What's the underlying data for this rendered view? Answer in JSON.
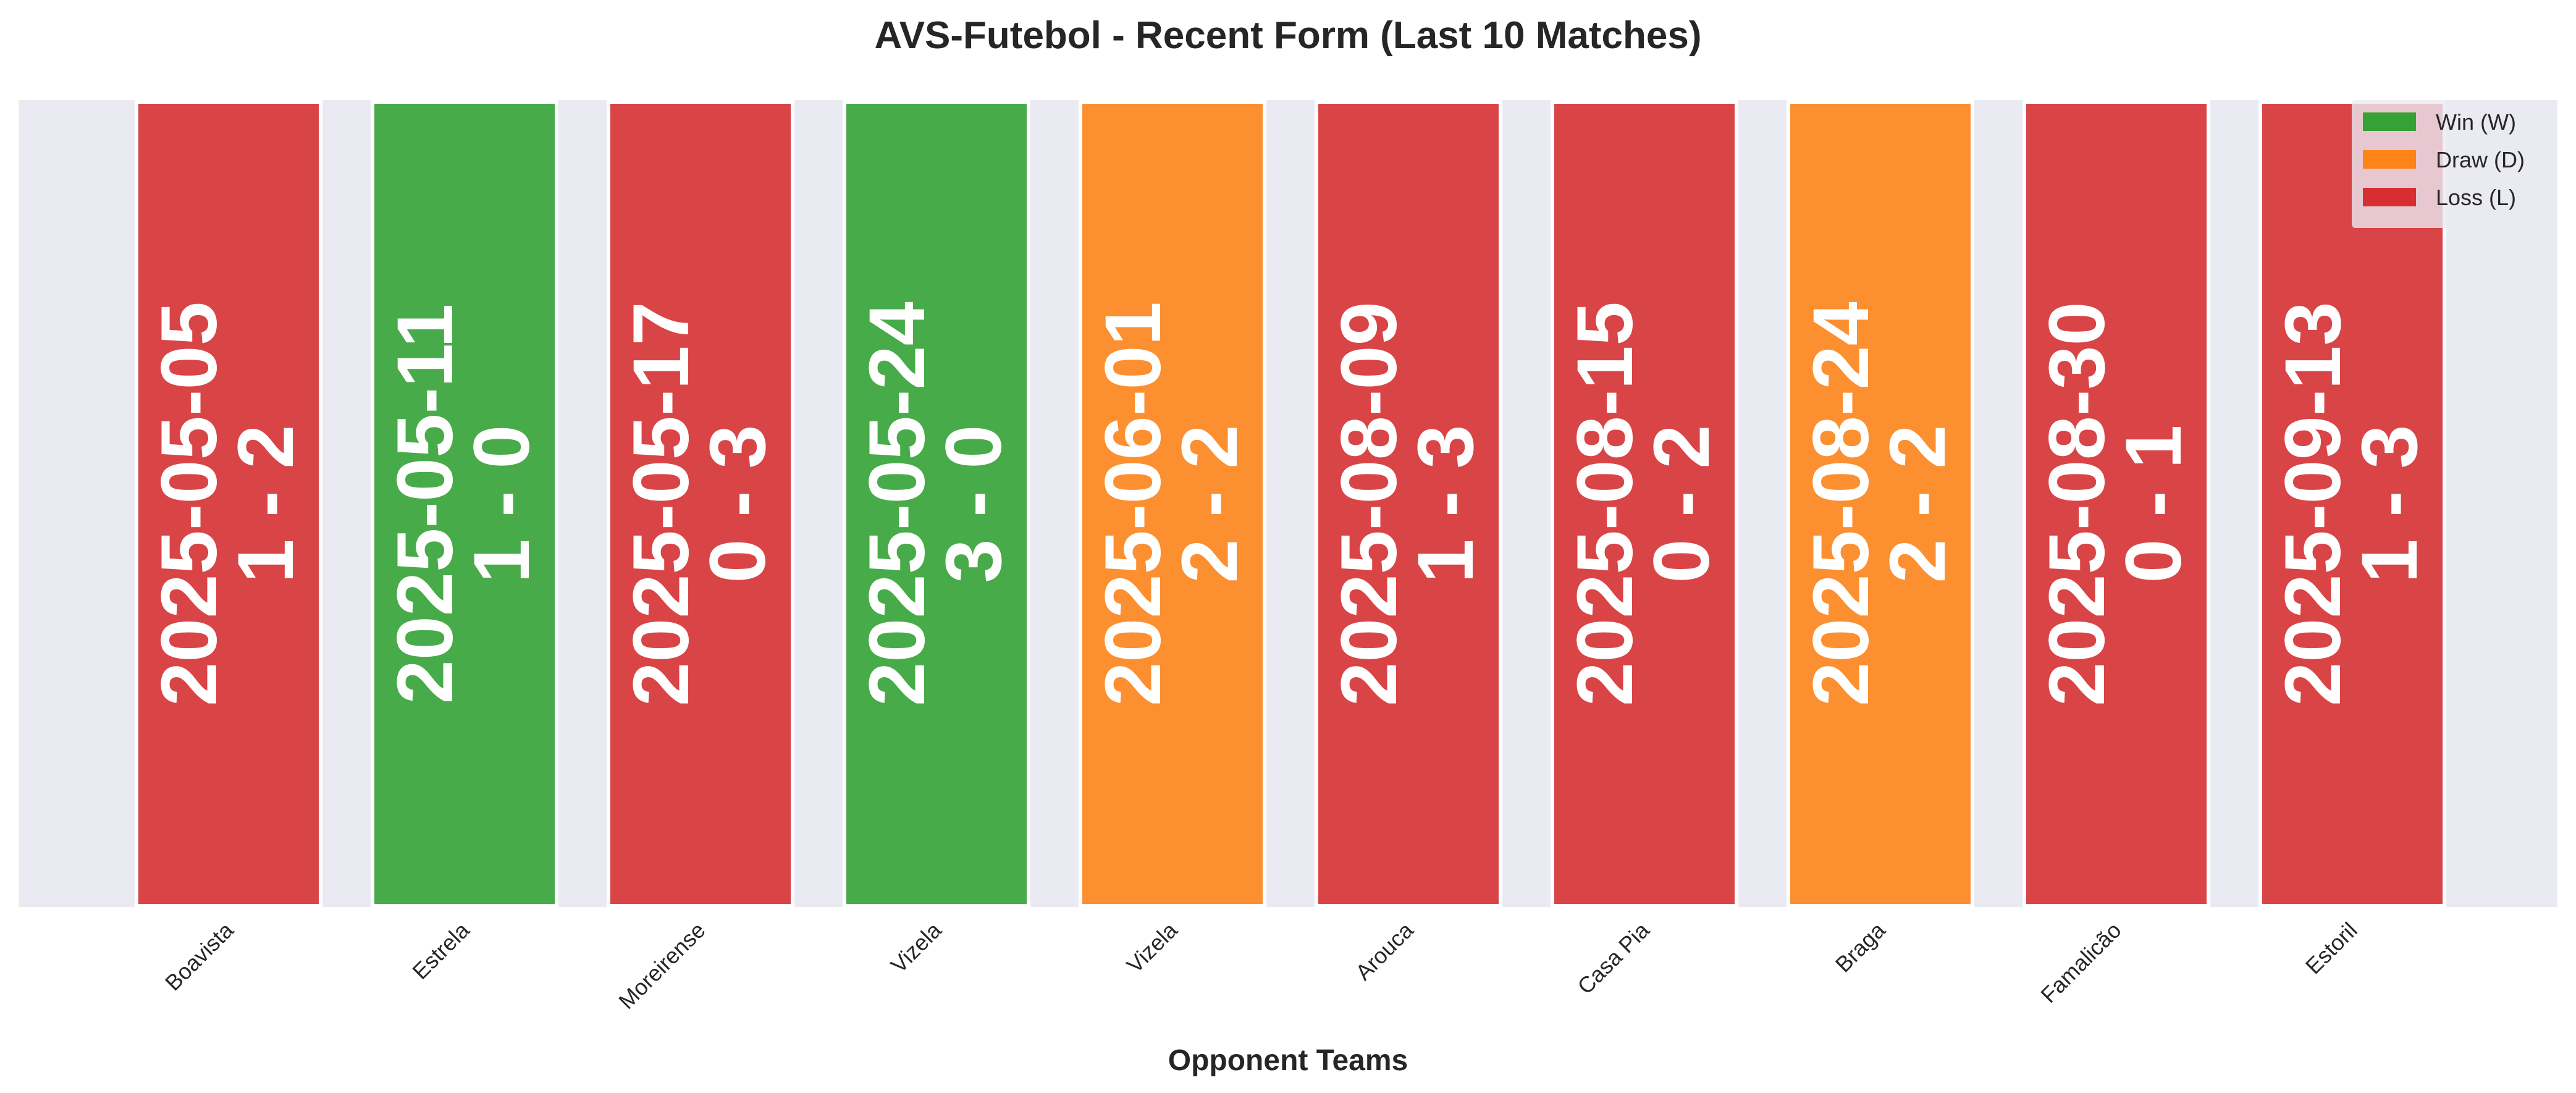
{
  "chart_data": {
    "type": "bar",
    "title": "AVS-Futebol - Recent Form (Last 10 Matches)",
    "xlabel": "Opponent Teams",
    "ylabel": "",
    "grid": false,
    "legend_position": "top-right",
    "categories": [
      "Boavista",
      "Estrela",
      "Moreirense",
      "Vizela",
      "Vizela",
      "Arouca",
      "Casa Pia",
      "Braga",
      "Famalicão",
      "Estoril"
    ],
    "values": [
      1,
      1,
      1,
      1,
      1,
      1,
      1,
      1,
      1,
      1
    ],
    "results": [
      "L",
      "W",
      "L",
      "W",
      "D",
      "L",
      "L",
      "D",
      "L",
      "L"
    ],
    "dates": [
      "2025-05-05",
      "2025-05-11",
      "2025-05-17",
      "2025-05-24",
      "2025-06-01",
      "2025-08-09",
      "2025-08-15",
      "2025-08-24",
      "2025-08-30",
      "2025-09-13"
    ],
    "scores": [
      "1 - 2",
      "1 - 0",
      "0 - 3",
      "3 - 0",
      "2 - 2",
      "1 - 3",
      "0 - 2",
      "2 - 2",
      "0 - 1",
      "1 - 3"
    ],
    "legend": [
      {
        "key": "W",
        "label": "Win (W)",
        "color": "#2ca02c"
      },
      {
        "key": "D",
        "label": "Draw (D)",
        "color": "#ff7f0e"
      },
      {
        "key": "L",
        "label": "Loss (L)",
        "color": "#d62728"
      }
    ],
    "colors": {
      "W": "#2ca02c",
      "D": "#ff7f0e",
      "L": "#d62728",
      "plot_background": "#eaeaf2"
    }
  }
}
